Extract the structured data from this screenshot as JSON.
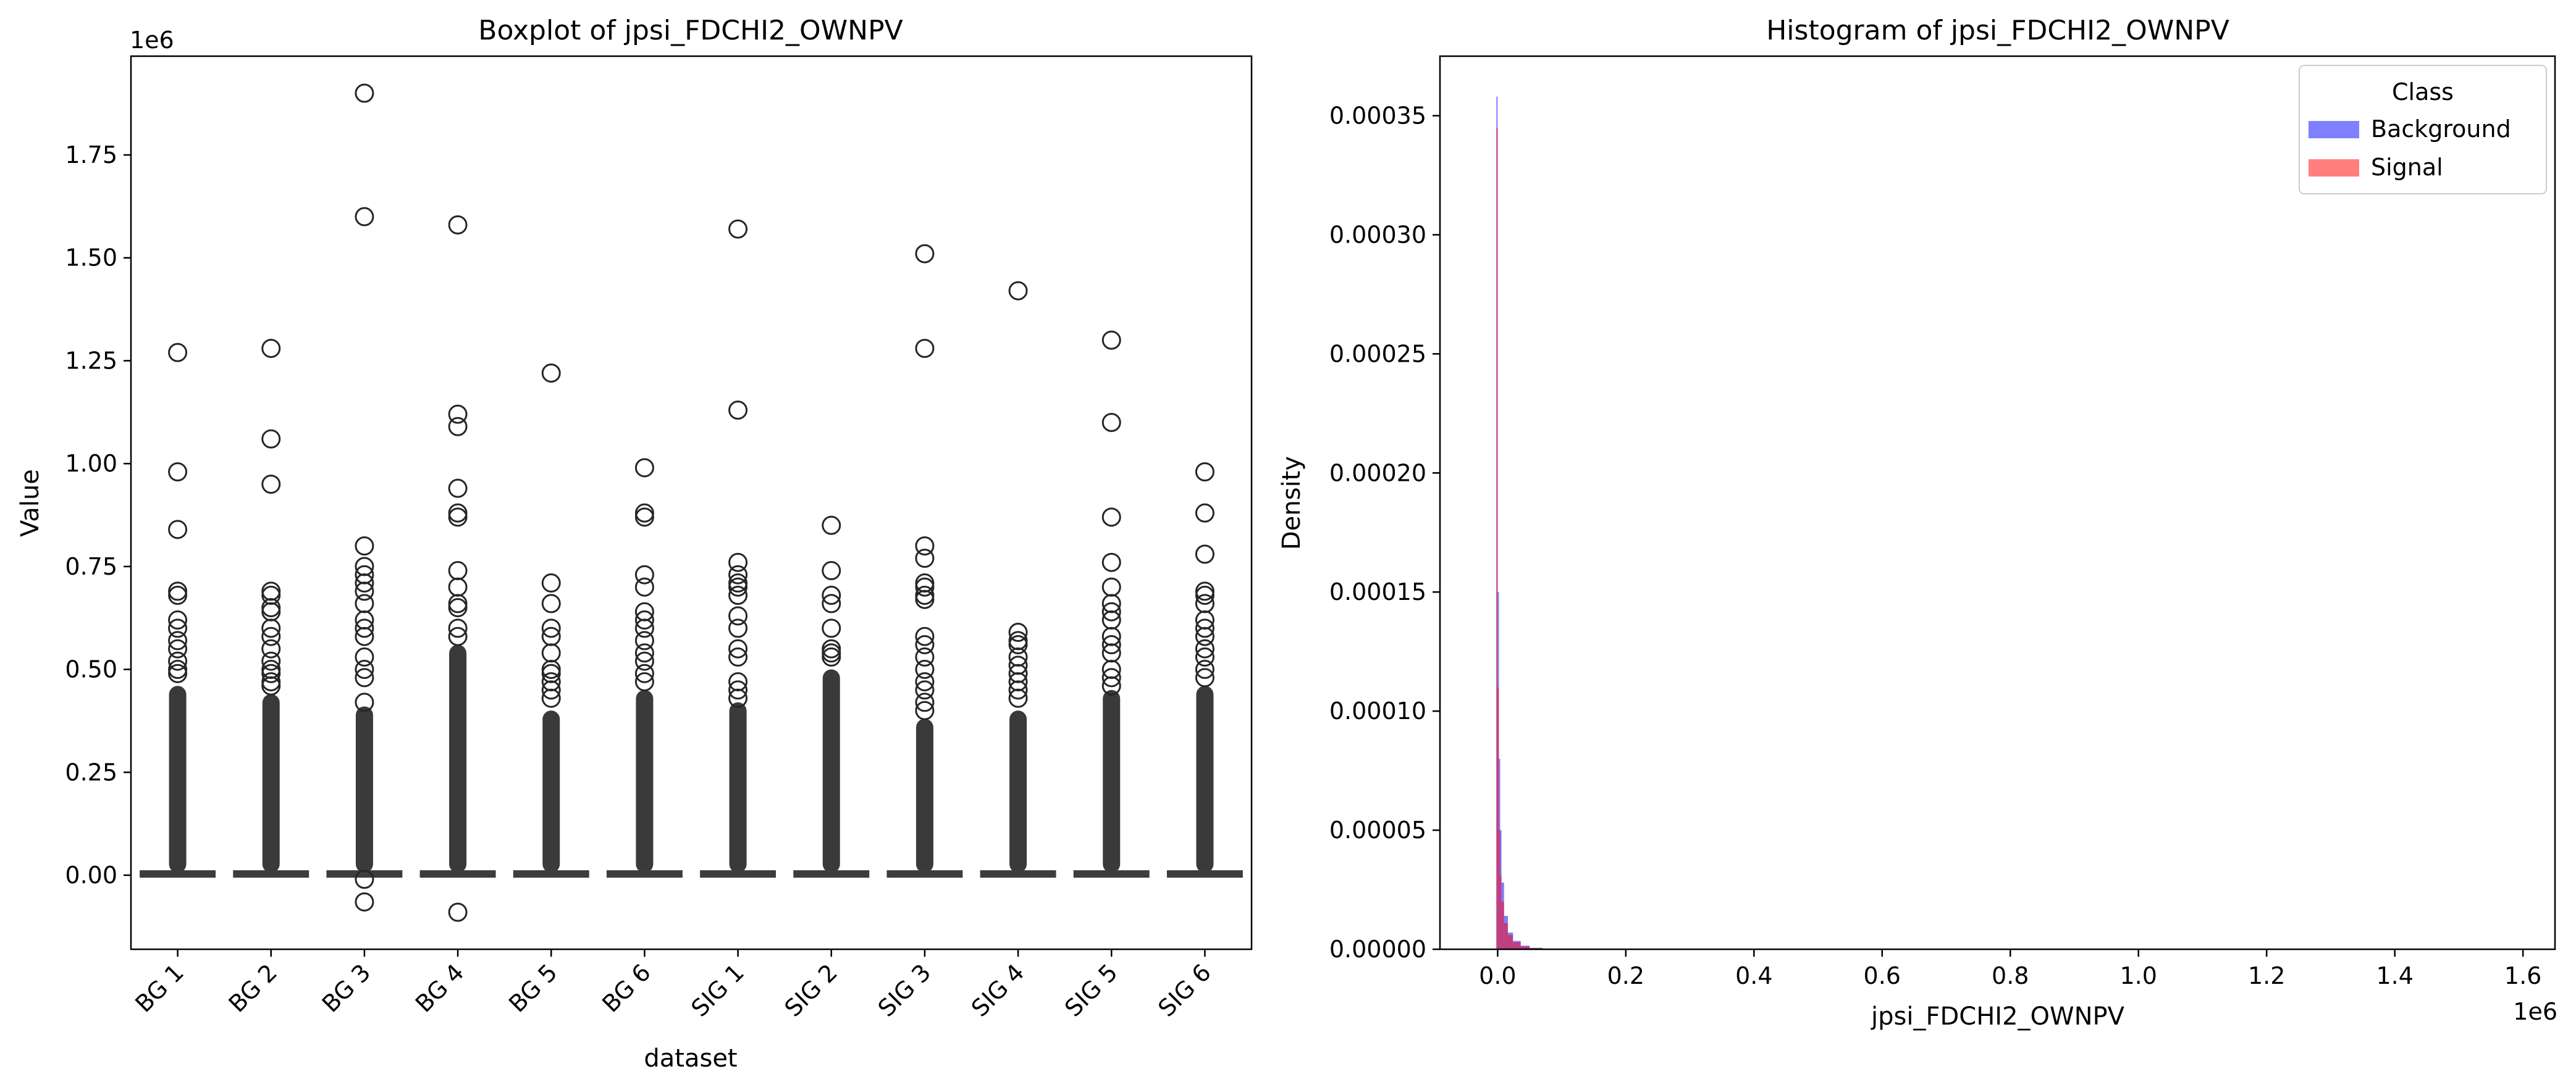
{
  "chart_data": [
    {
      "type": "boxplot",
      "title": "Boxplot of jpsi_FDCHI2_OWNPV",
      "xlabel": "dataset",
      "ylabel": "Value",
      "y_offset_label": "1e6",
      "ylim": [
        -0.18,
        1.99
      ],
      "yticks": [
        0.0,
        0.25,
        0.5,
        0.75,
        1.0,
        1.25,
        1.5,
        1.75
      ],
      "ytick_labels": [
        "0.00",
        "0.25",
        "0.50",
        "0.75",
        "1.00",
        "1.25",
        "1.50",
        "1.75"
      ],
      "categories": [
        "BG 1",
        "BG 2",
        "BG 3",
        "BG 4",
        "BG 5",
        "BG 6",
        "SIG 1",
        "SIG 2",
        "SIG 3",
        "SIG 4",
        "SIG 5",
        "SIG 6"
      ],
      "grid": false,
      "boxes": [
        {
          "q1": 0.0,
          "median": 0.002,
          "q3": 0.006,
          "dense_outliers_to": 0.46,
          "outliers": [
            1.27,
            0.98,
            0.84,
            0.69,
            0.68,
            0.62,
            0.6,
            0.57,
            0.55,
            0.52,
            0.5,
            0.49
          ]
        },
        {
          "q1": 0.0,
          "median": 0.002,
          "q3": 0.006,
          "dense_outliers_to": 0.44,
          "outliers": [
            1.28,
            1.06,
            0.95,
            0.69,
            0.68,
            0.65,
            0.64,
            0.6,
            0.58,
            0.55,
            0.52,
            0.5,
            0.49,
            0.47,
            0.46
          ]
        },
        {
          "q1": 0.0,
          "median": 0.002,
          "q3": 0.006,
          "dense_outliers_to": 0.41,
          "outliers": [
            1.9,
            1.6,
            0.8,
            0.75,
            0.73,
            0.71,
            0.69,
            0.66,
            0.62,
            0.6,
            0.58,
            0.53,
            0.5,
            0.48,
            0.42,
            -0.01,
            -0.065
          ]
        },
        {
          "q1": 0.0,
          "median": 0.002,
          "q3": 0.006,
          "dense_outliers_to": 0.56,
          "outliers": [
            1.58,
            1.12,
            1.09,
            0.94,
            0.88,
            0.87,
            0.74,
            0.7,
            0.66,
            0.65,
            0.6,
            0.58,
            -0.09
          ]
        },
        {
          "q1": 0.0,
          "median": 0.002,
          "q3": 0.006,
          "dense_outliers_to": 0.4,
          "outliers": [
            1.22,
            0.71,
            0.66,
            0.6,
            0.58,
            0.54,
            0.5,
            0.49,
            0.47,
            0.45,
            0.43
          ]
        },
        {
          "q1": 0.0,
          "median": 0.002,
          "q3": 0.006,
          "dense_outliers_to": 0.45,
          "outliers": [
            0.99,
            0.88,
            0.87,
            0.73,
            0.7,
            0.64,
            0.62,
            0.6,
            0.57,
            0.54,
            0.52,
            0.49,
            0.47
          ]
        },
        {
          "q1": 0.0,
          "median": 0.002,
          "q3": 0.006,
          "dense_outliers_to": 0.42,
          "outliers": [
            1.57,
            1.13,
            0.76,
            0.73,
            0.71,
            0.7,
            0.68,
            0.63,
            0.6,
            0.55,
            0.53,
            0.47,
            0.45,
            0.43
          ]
        },
        {
          "q1": 0.0,
          "median": 0.002,
          "q3": 0.006,
          "dense_outliers_to": 0.5,
          "outliers": [
            0.85,
            0.74,
            0.68,
            0.66,
            0.6,
            0.55,
            0.54,
            0.53
          ]
        },
        {
          "q1": 0.0,
          "median": 0.002,
          "q3": 0.006,
          "dense_outliers_to": 0.38,
          "outliers": [
            1.51,
            1.28,
            0.8,
            0.77,
            0.71,
            0.7,
            0.68,
            0.67,
            0.58,
            0.56,
            0.53,
            0.5,
            0.47,
            0.45,
            0.42,
            0.4
          ]
        },
        {
          "q1": 0.0,
          "median": 0.002,
          "q3": 0.006,
          "dense_outliers_to": 0.4,
          "outliers": [
            1.42,
            0.59,
            0.57,
            0.56,
            0.53,
            0.51,
            0.49,
            0.47,
            0.45,
            0.43
          ]
        },
        {
          "q1": 0.0,
          "median": 0.002,
          "q3": 0.006,
          "dense_outliers_to": 0.45,
          "outliers": [
            1.3,
            1.1,
            0.87,
            0.76,
            0.7,
            0.66,
            0.64,
            0.62,
            0.58,
            0.56,
            0.54,
            0.5,
            0.48,
            0.46
          ]
        },
        {
          "q1": 0.0,
          "median": 0.002,
          "q3": 0.006,
          "dense_outliers_to": 0.46,
          "outliers": [
            0.98,
            0.88,
            0.78,
            0.69,
            0.68,
            0.66,
            0.62,
            0.6,
            0.58,
            0.55,
            0.53,
            0.5,
            0.48
          ]
        }
      ]
    },
    {
      "type": "histogram",
      "title": "Histogram of jpsi_FDCHI2_OWNPV",
      "xlabel": "jpsi_FDCHI2_OWNPV",
      "ylabel": "Density",
      "x_offset_label": "1e6",
      "xlim": [
        -0.09,
        1.65
      ],
      "ylim": [
        0,
        0.000375
      ],
      "xticks": [
        0.0,
        0.2,
        0.4,
        0.6,
        0.8,
        1.0,
        1.2,
        1.4,
        1.6
      ],
      "xtick_labels": [
        "0.0",
        "0.2",
        "0.4",
        "0.6",
        "0.8",
        "1.0",
        "1.2",
        "1.4",
        "1.6"
      ],
      "yticks": [
        0.0,
        5e-05,
        0.0001,
        0.00015,
        0.0002,
        0.00025,
        0.0003,
        0.00035
      ],
      "ytick_labels": [
        "0.00000",
        "0.00005",
        "0.00010",
        "0.00015",
        "0.00020",
        "0.00025",
        "0.00030",
        "0.00035"
      ],
      "legend": {
        "title": "Class",
        "placement": "top-right"
      },
      "grid": false,
      "series": [
        {
          "name": "Background",
          "color": "#0000ff",
          "bins": [
            {
              "x0": -0.002,
              "x1": 0.0,
              "density": 0.000358
            },
            {
              "x0": 0.0,
              "x1": 0.002,
              "density": 0.00015
            },
            {
              "x0": 0.002,
              "x1": 0.004,
              "density": 8e-05
            },
            {
              "x0": 0.004,
              "x1": 0.006,
              "density": 5e-05
            },
            {
              "x0": 0.006,
              "x1": 0.01,
              "density": 2.8e-05
            },
            {
              "x0": 0.01,
              "x1": 0.016,
              "density": 1.4e-05
            },
            {
              "x0": 0.016,
              "x1": 0.024,
              "density": 7e-06
            },
            {
              "x0": 0.024,
              "x1": 0.036,
              "density": 3.5e-06
            },
            {
              "x0": 0.036,
              "x1": 0.05,
              "density": 1.5e-06
            },
            {
              "x0": 0.05,
              "x1": 0.07,
              "density": 6e-07
            }
          ]
        },
        {
          "name": "Signal",
          "color": "#ff0000",
          "bins": [
            {
              "x0": -0.002,
              "x1": 0.0,
              "density": 0.000345
            },
            {
              "x0": 0.0,
              "x1": 0.002,
              "density": 0.00011
            },
            {
              "x0": 0.002,
              "x1": 0.004,
              "density": 5e-05
            },
            {
              "x0": 0.004,
              "x1": 0.006,
              "density": 3.1e-05
            },
            {
              "x0": 0.006,
              "x1": 0.01,
              "density": 2e-05
            },
            {
              "x0": 0.01,
              "x1": 0.016,
              "density": 1.1e-05
            },
            {
              "x0": 0.016,
              "x1": 0.024,
              "density": 6e-06
            },
            {
              "x0": 0.024,
              "x1": 0.036,
              "density": 3e-06
            },
            {
              "x0": 0.036,
              "x1": 0.05,
              "density": 1.2e-06
            },
            {
              "x0": 0.05,
              "x1": 0.07,
              "density": 5e-07
            }
          ]
        }
      ]
    }
  ]
}
